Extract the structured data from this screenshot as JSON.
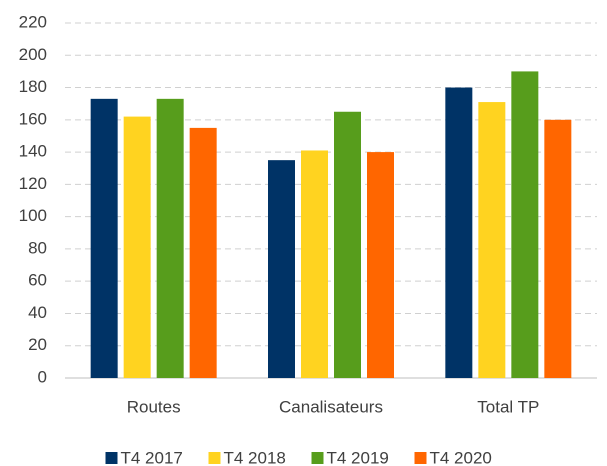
{
  "chart_data": {
    "type": "bar",
    "categories": [
      "Routes",
      "Canalisateurs",
      "Total TP"
    ],
    "series": [
      {
        "name": "T4 2017",
        "color": "#003366",
        "values": [
          173,
          135,
          180
        ]
      },
      {
        "name": "T4 2018",
        "color": "#ffd320",
        "values": [
          162,
          141,
          171
        ]
      },
      {
        "name": "T4 2019",
        "color": "#579d1c",
        "values": [
          173,
          165,
          190
        ]
      },
      {
        "name": "T4 2020",
        "color": "#ff6600",
        "values": [
          155,
          140,
          160
        ]
      }
    ],
    "ylim": [
      0,
      220
    ],
    "yticks": [
      0,
      20,
      40,
      60,
      80,
      100,
      120,
      140,
      160,
      180,
      200,
      220
    ],
    "grid": true,
    "legend": "bottom"
  }
}
